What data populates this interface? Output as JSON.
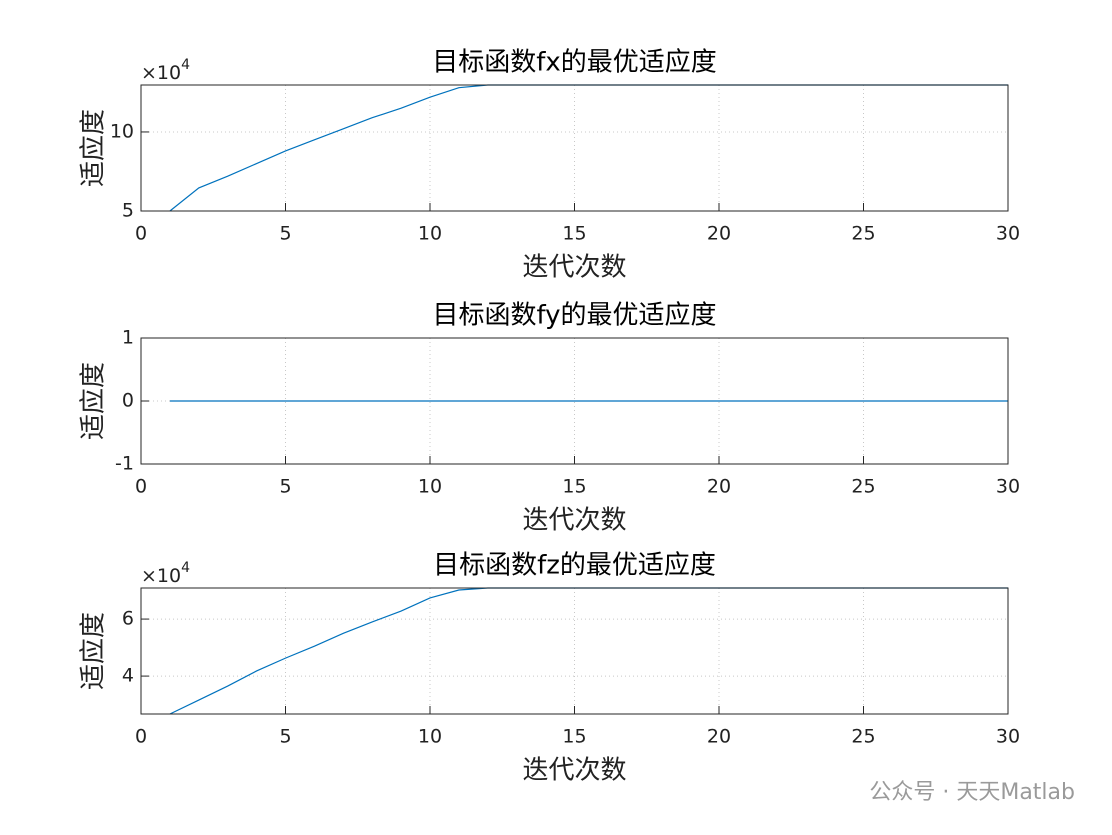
{
  "chart_data": [
    {
      "type": "line",
      "title": "目标函数fx的最优适应度",
      "x_label": "迭代次数",
      "y_label": "适应度",
      "y_multiplier": "×10",
      "y_multiplier_exponent": "4",
      "x": [
        1,
        2,
        3,
        4,
        5,
        6,
        7,
        8,
        9,
        10,
        11,
        12,
        13,
        14,
        15,
        16,
        17,
        18,
        19,
        20,
        21,
        22,
        23,
        24,
        25,
        26,
        27,
        28,
        29,
        30
      ],
      "series": [
        {
          "color": "#0072bd",
          "values": [
            5.0,
            6.46,
            7.2,
            8.0,
            8.8,
            9.5,
            10.2,
            10.9,
            11.5,
            12.2,
            12.8,
            12.97,
            12.97,
            12.97,
            12.97,
            12.97,
            12.97,
            12.97,
            12.97,
            12.97,
            12.97,
            12.97,
            12.97,
            12.97,
            12.97,
            12.97,
            12.97,
            12.97,
            12.97,
            12.97
          ]
        }
      ],
      "xlim": [
        0,
        30
      ],
      "xticks": [
        0,
        5,
        10,
        15,
        20,
        25,
        30
      ],
      "ylim": [
        5,
        12.97
      ],
      "yticks": [
        5,
        10
      ],
      "grid": true
    },
    {
      "type": "line",
      "title": "目标函数fy的最优适应度",
      "x_label": "迭代次数",
      "y_label": "适应度",
      "x": [
        1,
        2,
        3,
        4,
        5,
        6,
        7,
        8,
        9,
        10,
        11,
        12,
        13,
        14,
        15,
        16,
        17,
        18,
        19,
        20,
        21,
        22,
        23,
        24,
        25,
        26,
        27,
        28,
        29,
        30
      ],
      "series": [
        {
          "color": "#0072bd",
          "values": [
            0,
            0,
            0,
            0,
            0,
            0,
            0,
            0,
            0,
            0,
            0,
            0,
            0,
            0,
            0,
            0,
            0,
            0,
            0,
            0,
            0,
            0,
            0,
            0,
            0,
            0,
            0,
            0,
            0,
            0
          ]
        }
      ],
      "xlim": [
        0,
        30
      ],
      "xticks": [
        0,
        5,
        10,
        15,
        20,
        25,
        30
      ],
      "ylim": [
        -1,
        1
      ],
      "yticks": [
        -1,
        0,
        1
      ],
      "grid": true
    },
    {
      "type": "line",
      "title": "目标函数fz的最优适应度",
      "x_label": "迭代次数",
      "y_label": "适应度",
      "y_multiplier": "×10",
      "y_multiplier_exponent": "4",
      "x": [
        1,
        2,
        3,
        4,
        5,
        6,
        7,
        8,
        9,
        10,
        11,
        12,
        13,
        14,
        15,
        16,
        17,
        18,
        19,
        20,
        21,
        22,
        23,
        24,
        25,
        26,
        27,
        28,
        29,
        30
      ],
      "series": [
        {
          "color": "#0072bd",
          "values": [
            2.67,
            3.16,
            3.65,
            4.18,
            4.63,
            5.05,
            5.5,
            5.9,
            6.28,
            6.74,
            7.02,
            7.09,
            7.09,
            7.09,
            7.09,
            7.09,
            7.09,
            7.09,
            7.09,
            7.09,
            7.09,
            7.09,
            7.09,
            7.09,
            7.09,
            7.09,
            7.09,
            7.09,
            7.09,
            7.09
          ]
        }
      ],
      "xlim": [
        0,
        30
      ],
      "xticks": [
        0,
        5,
        10,
        15,
        20,
        25,
        30
      ],
      "ylim": [
        2.67,
        7.09
      ],
      "yticks": [
        4,
        6
      ],
      "grid": true
    }
  ],
  "watermark": "公众号 · 天天Matlab"
}
